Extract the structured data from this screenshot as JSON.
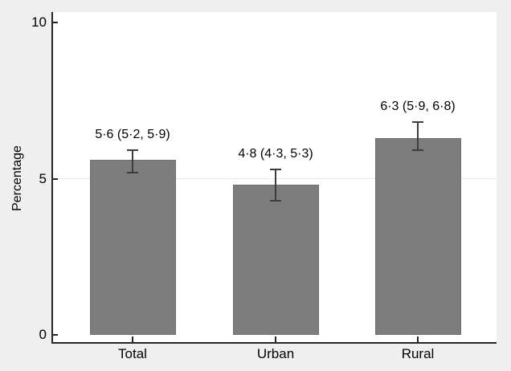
{
  "chart_data": {
    "type": "bar",
    "title": "",
    "categories": [
      "Total",
      "Urban",
      "Rural"
    ],
    "series": [
      {
        "name": "Percentage",
        "values": [
          5.6,
          4.8,
          6.3
        ]
      }
    ],
    "error_bars": {
      "low": [
        5.2,
        4.3,
        5.9
      ],
      "high": [
        5.9,
        5.3,
        6.8
      ]
    },
    "data_labels": [
      "5·6 (5·2, 5·9)",
      "4·8 (4·3, 5·3)",
      "6·3 (5·9, 6·8)"
    ],
    "xlabel": "",
    "ylabel": "Percentage",
    "ylim": [
      0,
      10.6
    ],
    "yticks": [
      0,
      5,
      10
    ],
    "ytick_labels": [
      "0",
      "5",
      "10"
    ],
    "gridlines": [
      5
    ],
    "grid": "horizontal gridline at 5 only, drawn behind bars",
    "legend": "none",
    "colors": {
      "background": "#efefef",
      "plot": "#ffffff",
      "bar": "#7d7d7d",
      "bar_border": "#6e6e6e",
      "axis": "#262626",
      "grid": "#e6e6e6",
      "error": "#3d3d3d",
      "text": "#000000"
    }
  }
}
